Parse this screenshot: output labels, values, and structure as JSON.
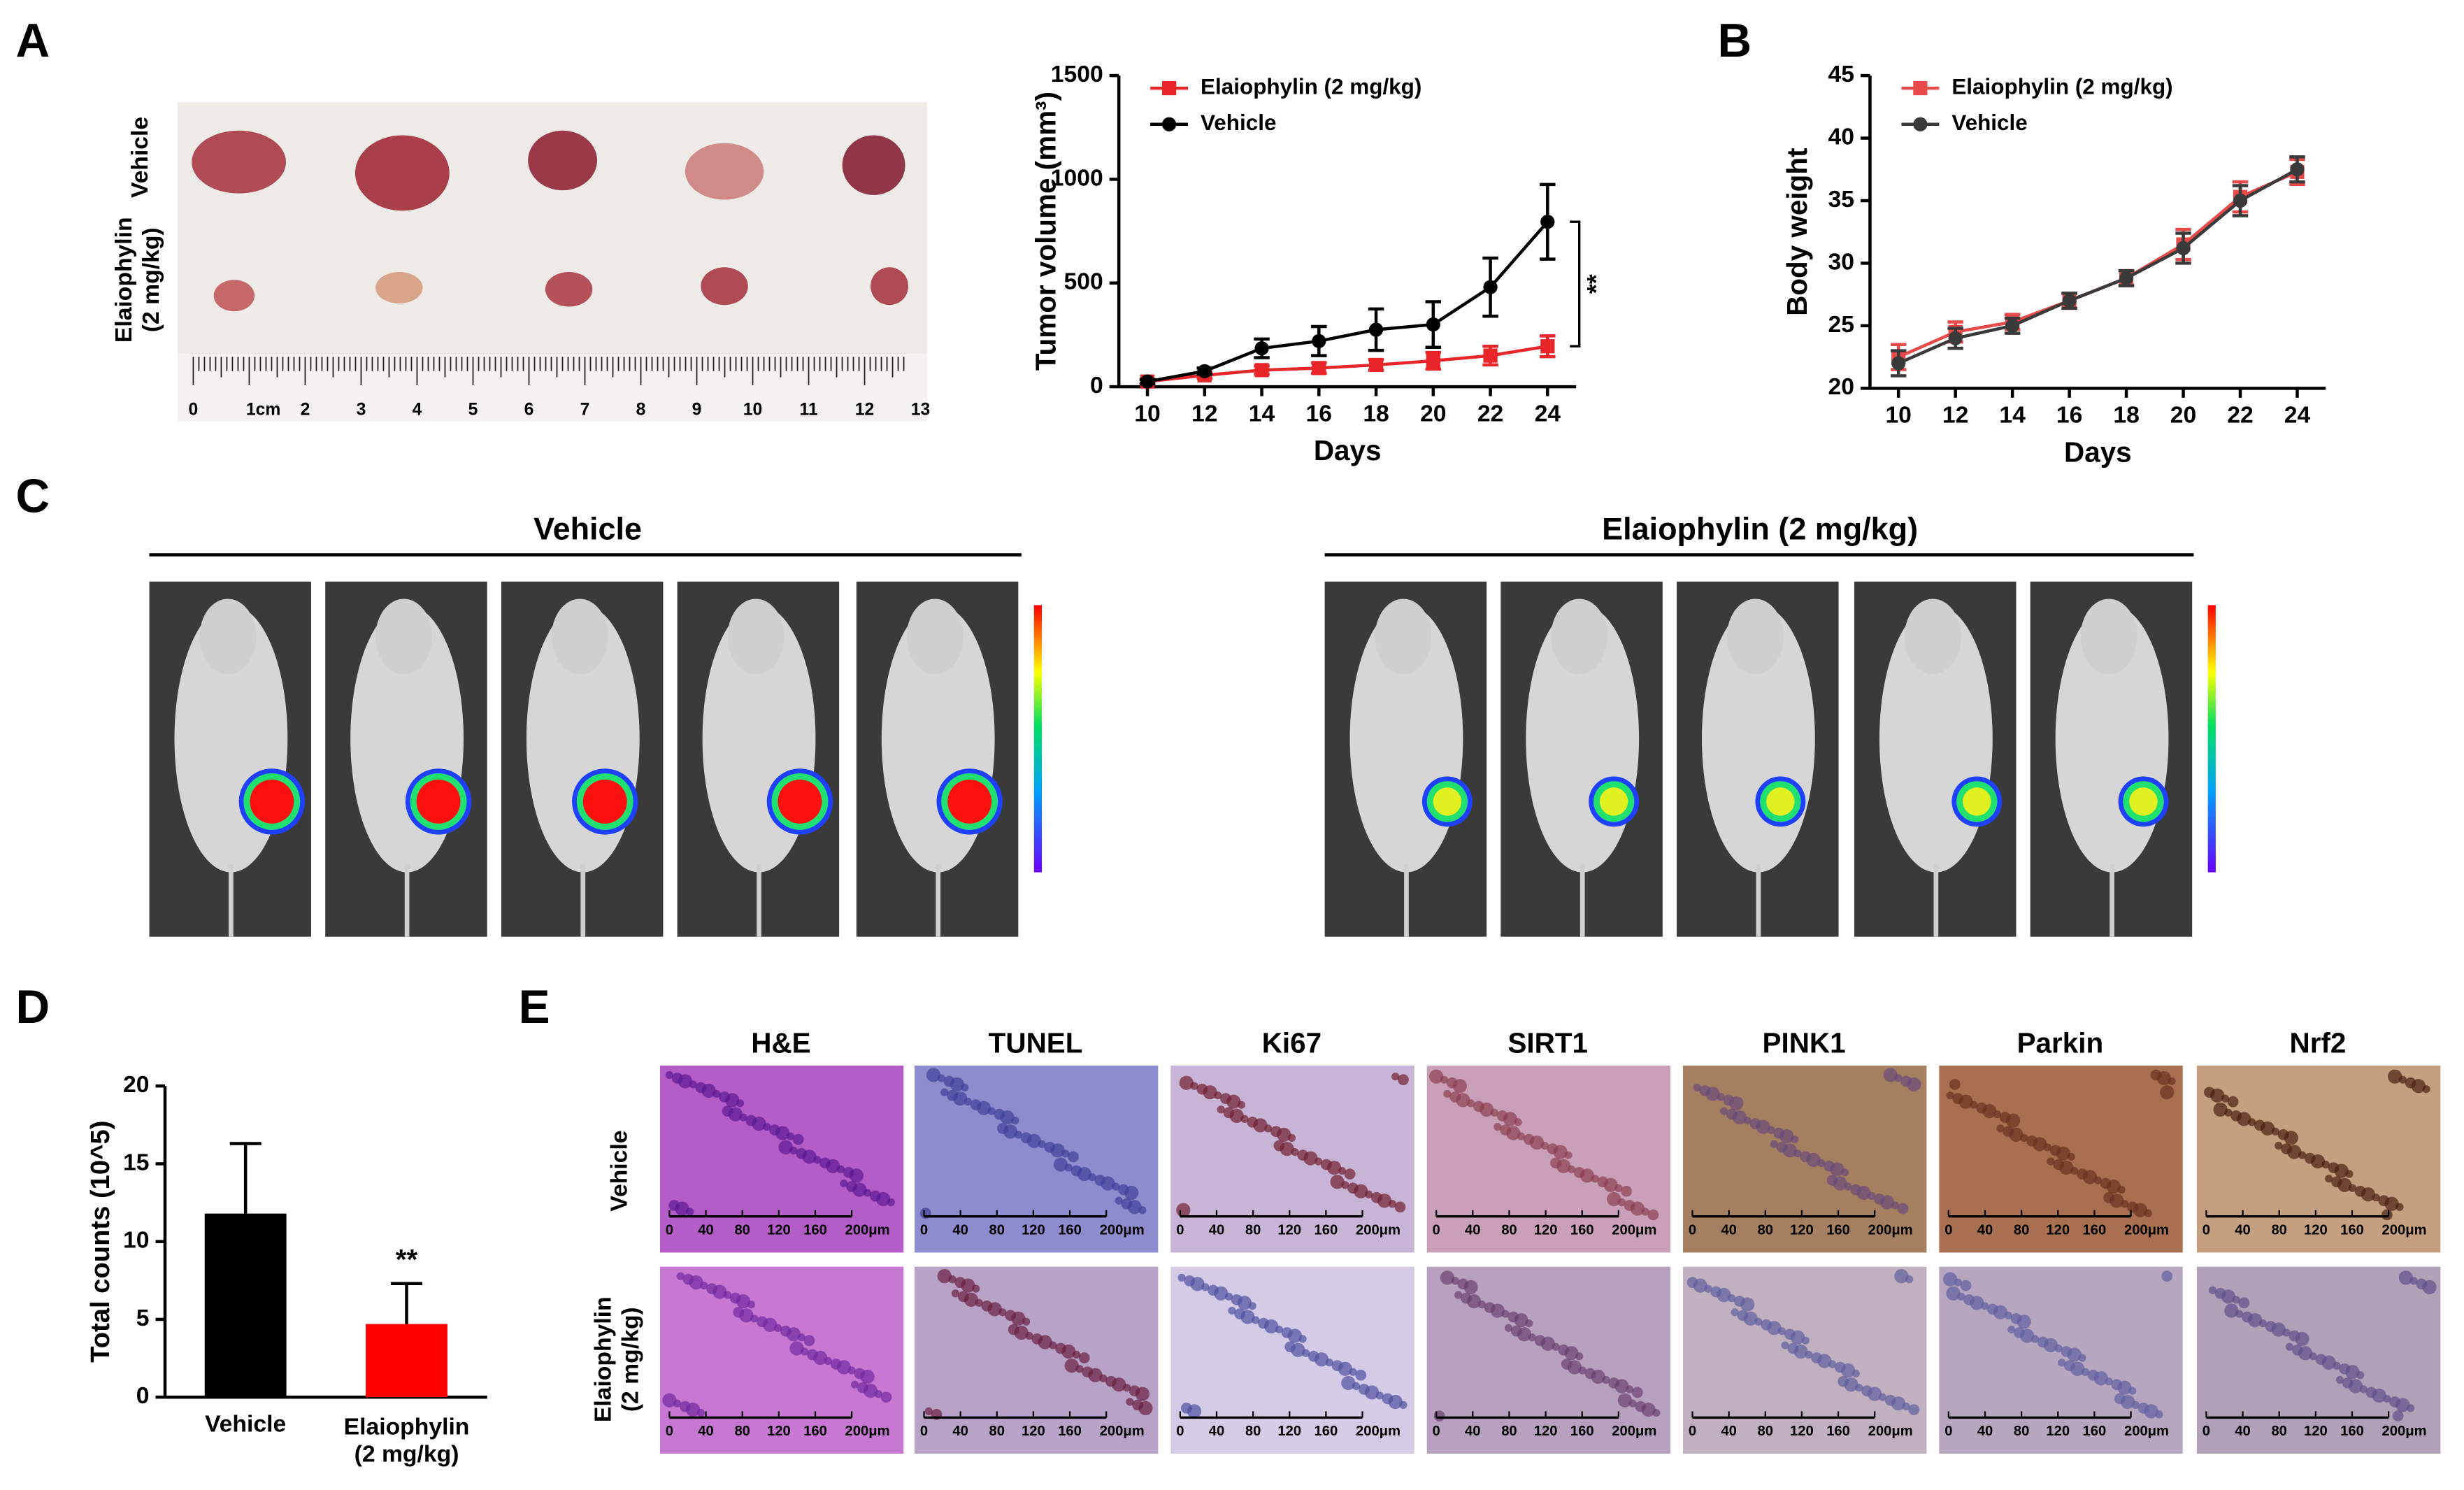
{
  "panels": [
    "A",
    "B",
    "C",
    "D",
    "E"
  ],
  "panel_a": {
    "row_labels": [
      "Vehicle",
      "Elaiophylin (2 mg/kg)"
    ],
    "ruler_labels": [
      "0",
      "1cm",
      "2",
      "3",
      "4",
      "5",
      "6",
      "7",
      "8",
      "9",
      "10",
      "11",
      "12",
      "13"
    ]
  },
  "panel_c": {
    "groups": [
      "Vehicle",
      "Elaiophylin (2 mg/kg)"
    ]
  },
  "panel_e": {
    "columns": [
      "H&E",
      "TUNEL",
      "Ki67",
      "SIRT1",
      "PINK1",
      "Parkin",
      "Nrf2"
    ],
    "rows": [
      "Vehicle",
      "Elaiophylin (2 mg/kg)"
    ],
    "scale_bar_labels": [
      "0",
      "40",
      "80",
      "120",
      "160",
      "200μm"
    ]
  },
  "chart_data": [
    {
      "type": "line",
      "xlabel": "Days",
      "ylabel": "Tumor volume (mm³)",
      "x": [
        10,
        12,
        14,
        16,
        18,
        20,
        22,
        24
      ],
      "xlim": [
        9,
        25
      ],
      "xticks": [
        10,
        12,
        14,
        16,
        18,
        20,
        22,
        24
      ],
      "ylim": [
        0,
        1500
      ],
      "yticks": [
        0,
        500,
        1000,
        1500
      ],
      "legend": "upper left",
      "annotation": "**",
      "series": [
        {
          "name": "Elaiophylin (2 mg/kg)",
          "color": "#e8262a",
          "marker": "square",
          "values": [
            25,
            55,
            80,
            90,
            105,
            125,
            150,
            195
          ],
          "errors": [
            10,
            15,
            20,
            25,
            25,
            40,
            45,
            50
          ]
        },
        {
          "name": "Vehicle",
          "color": "#000000",
          "marker": "circle",
          "values": [
            25,
            75,
            185,
            220,
            275,
            300,
            480,
            795
          ],
          "errors": [
            10,
            15,
            45,
            70,
            100,
            110,
            140,
            180
          ]
        }
      ]
    },
    {
      "type": "line",
      "xlabel": "Days",
      "ylabel": "Body weight",
      "x": [
        10,
        12,
        14,
        16,
        18,
        20,
        22,
        24
      ],
      "xlim": [
        9,
        25
      ],
      "xticks": [
        10,
        12,
        14,
        16,
        18,
        20,
        22,
        24
      ],
      "ylim": [
        20,
        45
      ],
      "yticks": [
        20,
        25,
        30,
        35,
        40,
        45
      ],
      "legend": "upper left",
      "series": [
        {
          "name": "Elaiophylin (2 mg/kg)",
          "color": "#e84a4a",
          "marker": "square",
          "values": [
            22.5,
            24.5,
            25.3,
            27.0,
            28.8,
            31.5,
            35.3,
            37.3
          ],
          "errors": [
            1.0,
            0.8,
            0.6,
            0.6,
            0.6,
            1.2,
            1.2,
            1.0
          ]
        },
        {
          "name": "Vehicle",
          "color": "#3a3a3a",
          "marker": "circle",
          "values": [
            22.0,
            24.0,
            25.0,
            27.0,
            28.8,
            31.2,
            35.0,
            37.5
          ],
          "errors": [
            1.0,
            0.8,
            0.6,
            0.6,
            0.6,
            1.2,
            1.2,
            1.0
          ]
        }
      ]
    },
    {
      "type": "bar",
      "ylabel": "Total  counts (10^5)",
      "categories": [
        "Vehicle",
        "Elaiophylin (2 mg/kg)"
      ],
      "values": [
        11.8,
        4.7
      ],
      "errors": [
        4.5,
        2.6
      ],
      "colors": [
        "#000000",
        "#ff0000"
      ],
      "ylim": [
        0,
        20
      ],
      "yticks": [
        0,
        5,
        10,
        15,
        20
      ],
      "annotation": "**"
    }
  ]
}
